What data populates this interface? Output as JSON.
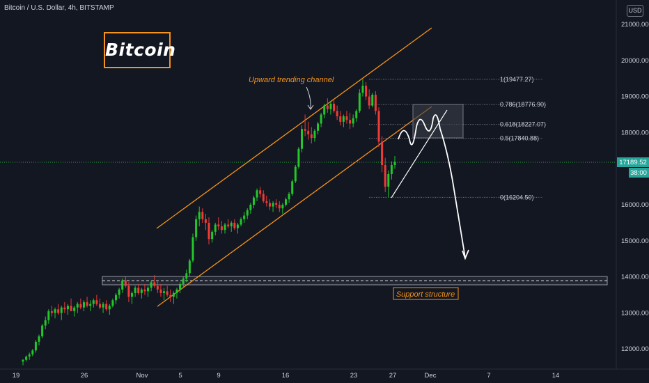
{
  "header": {
    "symbol": "Bitcoin / U.S. Dollar, 4h, BITSTAMP",
    "currency": "USD"
  },
  "logo": {
    "text": "Bitcoin"
  },
  "colors": {
    "up": "#26a69a",
    "up_bright": "#22c72a",
    "down": "#ef3b36",
    "channel": "#f7931a",
    "text": "#d1d4dc",
    "background": "#131722",
    "price_line": "#25a43a"
  },
  "chart_data": {
    "type": "candlestick",
    "yticks": [
      "21000.00",
      "20000.00",
      "19000.00",
      "18000.00",
      "16000.00",
      "15000.00",
      "14000.00",
      "13000.00",
      "12000.00"
    ],
    "xticks": [
      "19",
      "26",
      "Nov",
      "5",
      "9",
      "16",
      "23",
      "27",
      "Dec",
      "7",
      "14"
    ],
    "last_price": "17189.52",
    "countdown": "38:00",
    "fibonacci": [
      {
        "level": "1",
        "price": 19477.27,
        "label": "1(19477.27)"
      },
      {
        "level": "0.786",
        "price": 18776.9,
        "label": "0.786(18776.90)"
      },
      {
        "level": "0.618",
        "price": 18227.07,
        "label": "0.618(18227.07)"
      },
      {
        "level": "0.5",
        "price": 17840.88,
        "label": "0.5(17840.88)"
      },
      {
        "level": "0",
        "price": 16204.5,
        "label": "0(16204.50)"
      }
    ],
    "annotations": {
      "channel": "Upward trending channel",
      "support": "Support structure"
    },
    "ylim": [
      11600,
      21400
    ],
    "candles": [
      [
        11650,
        11720,
        11550,
        11700
      ],
      [
        11700,
        11820,
        11650,
        11790
      ],
      [
        11790,
        11900,
        11700,
        11850
      ],
      [
        11850,
        12000,
        11800,
        11960
      ],
      [
        11960,
        12250,
        11900,
        12200
      ],
      [
        12200,
        12400,
        12100,
        12350
      ],
      [
        12350,
        12700,
        12300,
        12650
      ],
      [
        12650,
        12900,
        12550,
        12800
      ],
      [
        12800,
        13100,
        12700,
        13050
      ],
      [
        13050,
        13200,
        12900,
        13000
      ],
      [
        13000,
        13150,
        12850,
        13100
      ],
      [
        13100,
        13250,
        12950,
        13000
      ],
      [
        13000,
        13200,
        12800,
        13150
      ],
      [
        13150,
        13300,
        13000,
        13100
      ],
      [
        13100,
        13250,
        12950,
        13200
      ],
      [
        13200,
        13400,
        13100,
        13050
      ],
      [
        13050,
        13200,
        12900,
        13150
      ],
      [
        13150,
        13300,
        13000,
        13250
      ],
      [
        13250,
        13400,
        13100,
        13150
      ],
      [
        13150,
        13350,
        13050,
        13300
      ],
      [
        13300,
        13450,
        13150,
        13200
      ],
      [
        13200,
        13350,
        13050,
        13250
      ],
      [
        13250,
        13400,
        13150,
        13350
      ],
      [
        13350,
        13500,
        13200,
        13250
      ],
      [
        13250,
        13400,
        13100,
        13150
      ],
      [
        13150,
        13300,
        13000,
        13250
      ],
      [
        13250,
        13350,
        13050,
        13100
      ],
      [
        13100,
        13250,
        12950,
        13200
      ],
      [
        13200,
        13400,
        13150,
        13350
      ],
      [
        13350,
        13550,
        13250,
        13500
      ],
      [
        13500,
        13700,
        13400,
        13650
      ],
      [
        13650,
        13950,
        13550,
        13900
      ],
      [
        13900,
        14000,
        13700,
        13750
      ],
      [
        13750,
        13850,
        13300,
        13450
      ],
      [
        13450,
        13600,
        13250,
        13550
      ],
      [
        13550,
        13750,
        13450,
        13700
      ],
      [
        13700,
        13800,
        13500,
        13550
      ],
      [
        13550,
        13700,
        13400,
        13650
      ],
      [
        13650,
        13800,
        13500,
        13600
      ],
      [
        13600,
        13750,
        13450,
        13700
      ],
      [
        13700,
        13900,
        13600,
        13850
      ],
      [
        13850,
        14050,
        13700,
        13750
      ],
      [
        13750,
        13900,
        13550,
        13650
      ],
      [
        13650,
        13800,
        13450,
        13550
      ],
      [
        13550,
        13700,
        13350,
        13600
      ],
      [
        13600,
        13750,
        13450,
        13500
      ],
      [
        13500,
        13650,
        13300,
        13450
      ],
      [
        13450,
        13600,
        13250,
        13550
      ],
      [
        13550,
        13700,
        13400,
        13650
      ],
      [
        13650,
        13850,
        13550,
        13800
      ],
      [
        13800,
        14000,
        13700,
        13950
      ],
      [
        13950,
        14200,
        13850,
        14100
      ],
      [
        14100,
        14500,
        14000,
        14450
      ],
      [
        14450,
        15200,
        14400,
        15100
      ],
      [
        15100,
        15700,
        15000,
        15600
      ],
      [
        15600,
        15950,
        15400,
        15800
      ],
      [
        15800,
        15900,
        15500,
        15600
      ],
      [
        15600,
        15750,
        15300,
        15500
      ],
      [
        15500,
        15650,
        14900,
        15050
      ],
      [
        15050,
        15300,
        14950,
        15250
      ],
      [
        15250,
        15500,
        15150,
        15450
      ],
      [
        15450,
        15650,
        15300,
        15400
      ],
      [
        15400,
        15550,
        15200,
        15300
      ],
      [
        15300,
        15500,
        15200,
        15450
      ],
      [
        15450,
        15600,
        15350,
        15400
      ],
      [
        15400,
        15550,
        15250,
        15500
      ],
      [
        15500,
        15600,
        15300,
        15350
      ],
      [
        15350,
        15500,
        15200,
        15450
      ],
      [
        15450,
        15650,
        15400,
        15600
      ],
      [
        15600,
        15800,
        15500,
        15700
      ],
      [
        15700,
        15900,
        15600,
        15850
      ],
      [
        15850,
        16050,
        15750,
        16000
      ],
      [
        16000,
        16250,
        15900,
        16200
      ],
      [
        16200,
        16450,
        16100,
        16400
      ],
      [
        16400,
        16500,
        16200,
        16300
      ],
      [
        16300,
        16400,
        16050,
        16100
      ],
      [
        16100,
        16250,
        15950,
        16050
      ],
      [
        16050,
        16150,
        15850,
        15950
      ],
      [
        15950,
        16100,
        15800,
        16050
      ],
      [
        16050,
        16150,
        15900,
        16000
      ],
      [
        16000,
        16100,
        15800,
        15900
      ],
      [
        15900,
        16050,
        15750,
        16000
      ],
      [
        16000,
        16200,
        15950,
        16150
      ],
      [
        16150,
        16350,
        16050,
        16300
      ],
      [
        16300,
        16700,
        16250,
        16650
      ],
      [
        16650,
        17100,
        16600,
        17050
      ],
      [
        17050,
        17600,
        17000,
        17550
      ],
      [
        17550,
        18200,
        17450,
        18100
      ],
      [
        18100,
        18500,
        17900,
        18050
      ],
      [
        18050,
        18300,
        17800,
        17950
      ],
      [
        17950,
        18150,
        17700,
        17850
      ],
      [
        17850,
        18100,
        17750,
        18050
      ],
      [
        18050,
        18300,
        17950,
        18250
      ],
      [
        18250,
        18550,
        18150,
        18500
      ],
      [
        18500,
        18800,
        18400,
        18750
      ],
      [
        18750,
        18950,
        18550,
        18650
      ],
      [
        18650,
        18850,
        18500,
        18800
      ],
      [
        18800,
        18900,
        18550,
        18600
      ],
      [
        18600,
        18750,
        18350,
        18450
      ],
      [
        18450,
        18600,
        18200,
        18300
      ],
      [
        18300,
        18500,
        18150,
        18450
      ],
      [
        18450,
        18600,
        18250,
        18350
      ],
      [
        18350,
        18550,
        18100,
        18250
      ],
      [
        18250,
        18500,
        18150,
        18400
      ],
      [
        18400,
        18650,
        18300,
        18600
      ],
      [
        18600,
        19200,
        18550,
        19100
      ],
      [
        19100,
        19480,
        19000,
        19300
      ],
      [
        19300,
        19400,
        18900,
        19000
      ],
      [
        19000,
        19200,
        18650,
        18750
      ],
      [
        18750,
        19100,
        18700,
        19050
      ],
      [
        19050,
        19150,
        18500,
        18600
      ],
      [
        18600,
        18700,
        17600,
        17750
      ],
      [
        17750,
        17900,
        16900,
        17100
      ],
      [
        17100,
        17300,
        16350,
        16500
      ],
      [
        16500,
        16950,
        16200,
        16850
      ],
      [
        16850,
        17200,
        16700,
        17100
      ],
      [
        17100,
        17350,
        17000,
        17190
      ]
    ]
  }
}
